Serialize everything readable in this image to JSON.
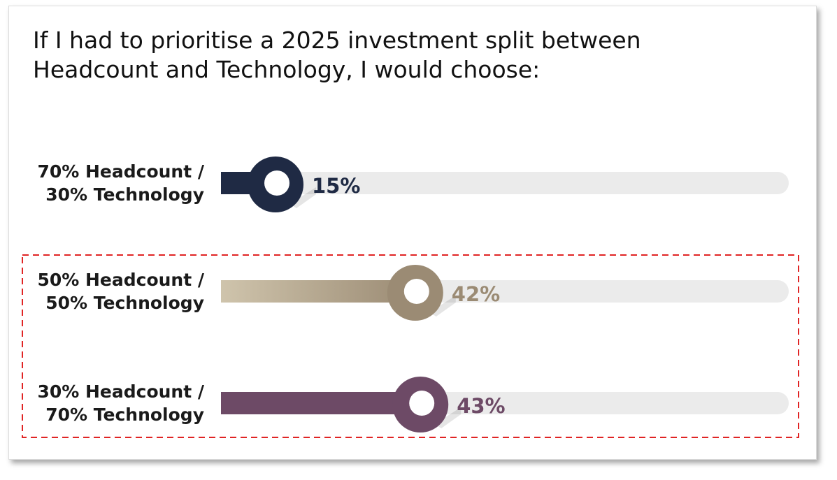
{
  "chart_data": {
    "type": "bar",
    "orientation": "horizontal",
    "title": "If I had to prioritise a 2025 investment split between Headcount and Technology, I would choose:",
    "unit": "%",
    "xlim": [
      0,
      100
    ],
    "categories": [
      [
        "70% Headcount /",
        "30% Technology"
      ],
      [
        "50% Headcount /",
        "50% Technology"
      ],
      [
        "30% Headcount /",
        "70% Technology"
      ]
    ],
    "values": [
      15,
      42,
      43
    ],
    "value_labels": [
      "15%",
      "42%",
      "43%"
    ],
    "highlight": {
      "categories": [
        1,
        2
      ],
      "style": "red dashed box"
    },
    "colors": {
      "bars": [
        "#1f2a44",
        "#9b8b74",
        "#6d4a66"
      ],
      "bar_gradient_start": [
        "#1f2a44",
        "#cfc4ac",
        "#6d4a66"
      ],
      "track": "#ebebeb",
      "highlight": "#e02424"
    }
  }
}
